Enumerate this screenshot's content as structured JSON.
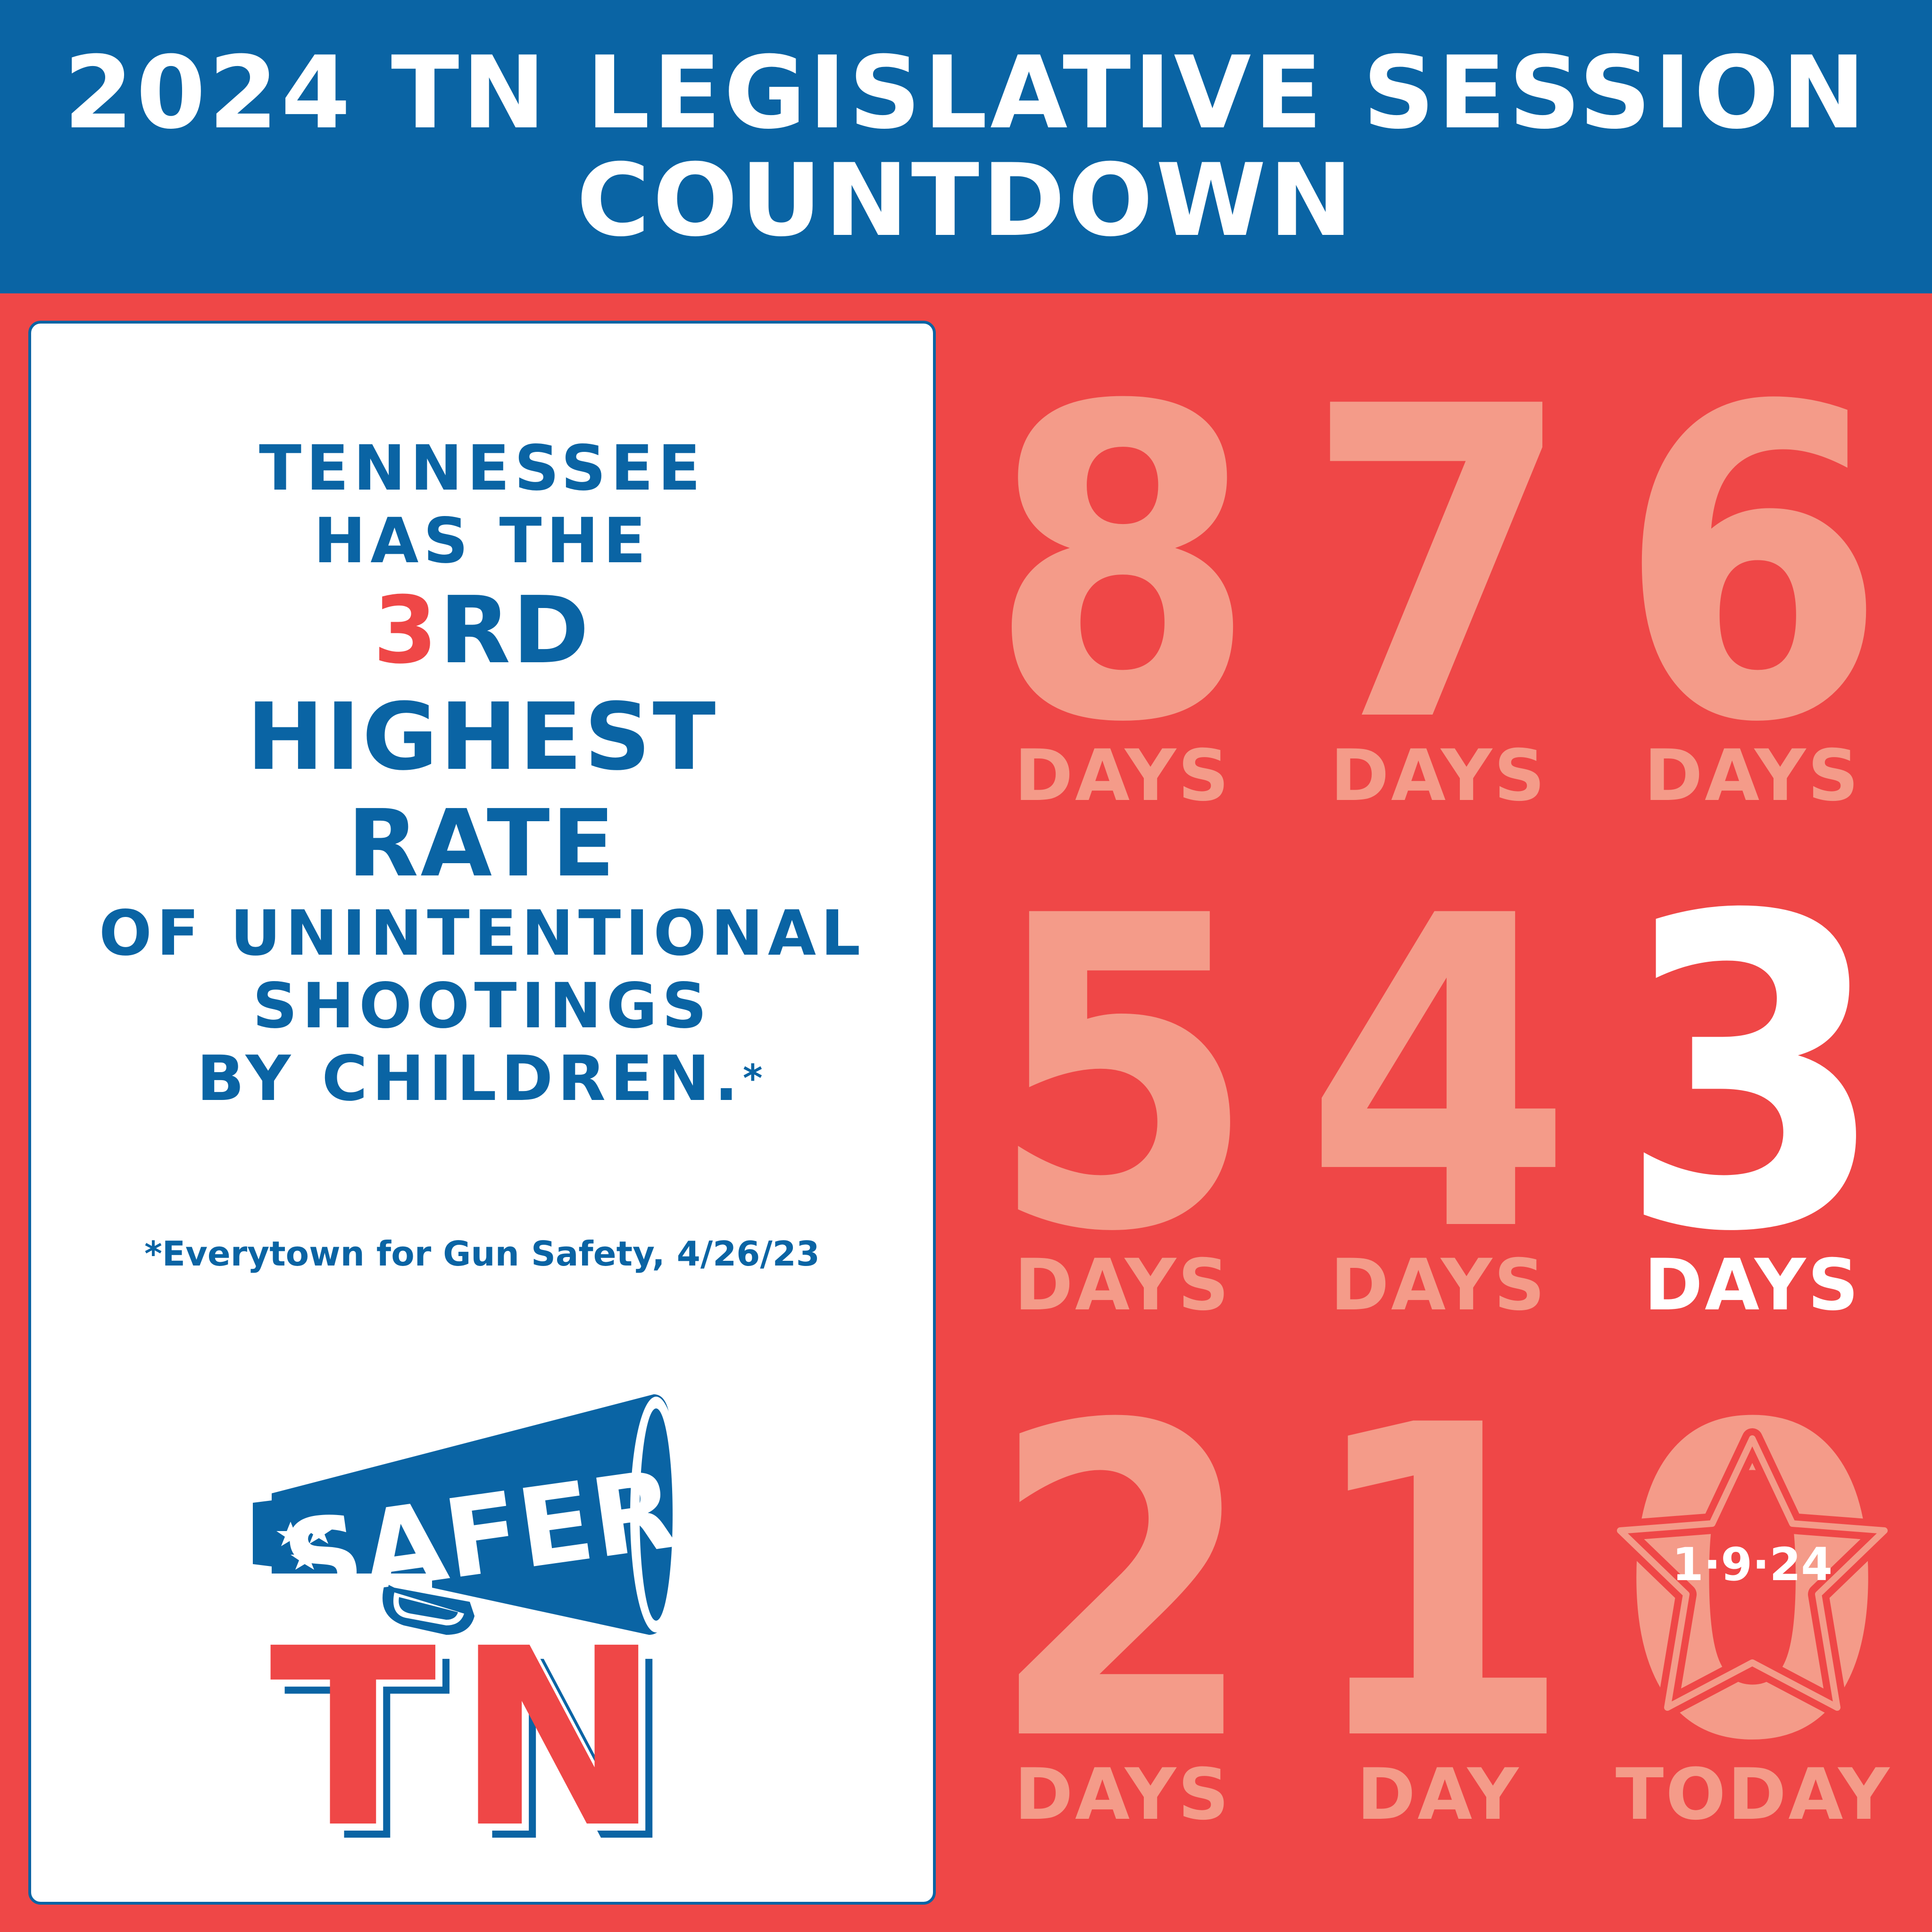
{
  "header": {
    "line1": "2024 TN LEGISLATIVE SESSION",
    "line2": "COUNTDOWN"
  },
  "fact": {
    "line1": "TENNESSEE",
    "line2": "HAS THE",
    "rank_number": "3",
    "rank_suffix": "RD",
    "line4": "HIGHEST",
    "line5": "RATE",
    "line6": "OF UNINTENTIONAL",
    "line7": "SHOOTINGS",
    "line8": "BY CHILDREN.",
    "asterisk": "*",
    "source": "*Everytown for Gun Safety, 4/26/23"
  },
  "logo": {
    "top_word": "SAFER",
    "bottom_word": "TN"
  },
  "countdown": [
    {
      "number": "8",
      "label": "DAYS"
    },
    {
      "number": "7",
      "label": "DAYS"
    },
    {
      "number": "6",
      "label": "DAYS"
    },
    {
      "number": "5",
      "label": "DAYS"
    },
    {
      "number": "4",
      "label": "DAYS"
    },
    {
      "number": "3",
      "label": "DAYS"
    },
    {
      "number": "2",
      "label": "DAYS"
    },
    {
      "number": "1",
      "label": "DAY"
    },
    {
      "number": "0",
      "label": "TODAY"
    }
  ],
  "current_day_number": "3",
  "final_date": "1·9·24",
  "colors": {
    "blue": "#0a64a4",
    "red": "#ef4747",
    "faded": "#f49b89",
    "white": "#ffffff"
  }
}
